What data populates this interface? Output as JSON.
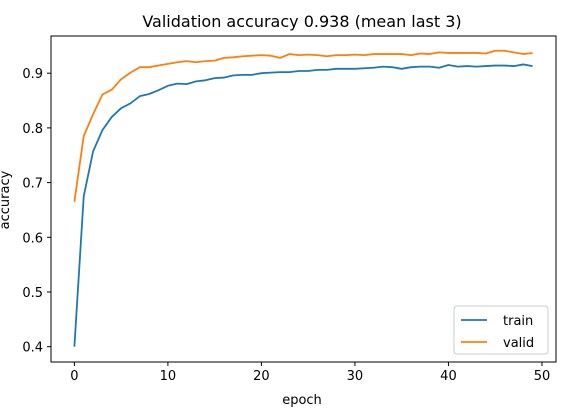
{
  "chart_data": {
    "type": "line",
    "title": "Validation accuracy 0.938 (mean last 3)",
    "xlabel": "epoch",
    "ylabel": "accuracy",
    "xlim": [
      -2.5,
      51.5
    ],
    "ylim": [
      0.372,
      0.968
    ],
    "xticks": [
      0,
      10,
      20,
      30,
      40,
      50
    ],
    "yticks": [
      0.4,
      0.5,
      0.6,
      0.7,
      0.8,
      0.9
    ],
    "xtick_labels": [
      "0",
      "10",
      "20",
      "30",
      "40",
      "50"
    ],
    "ytick_labels": [
      "0.4",
      "0.5",
      "0.6",
      "0.7",
      "0.8",
      "0.9"
    ],
    "grid": false,
    "legend": "lower-right",
    "x": [
      0,
      1,
      2,
      3,
      4,
      5,
      6,
      7,
      8,
      9,
      10,
      11,
      12,
      13,
      14,
      15,
      16,
      17,
      18,
      19,
      20,
      21,
      22,
      23,
      24,
      25,
      26,
      27,
      28,
      29,
      30,
      31,
      32,
      33,
      34,
      35,
      36,
      37,
      38,
      39,
      40,
      41,
      42,
      43,
      44,
      45,
      46,
      47,
      48,
      49
    ],
    "series": [
      {
        "name": "train",
        "color": "#1f77b4",
        "values": [
          0.4,
          0.675,
          0.757,
          0.796,
          0.82,
          0.836,
          0.845,
          0.858,
          0.862,
          0.869,
          0.877,
          0.881,
          0.88,
          0.885,
          0.887,
          0.891,
          0.892,
          0.896,
          0.897,
          0.897,
          0.9,
          0.901,
          0.902,
          0.902,
          0.904,
          0.904,
          0.906,
          0.906,
          0.908,
          0.908,
          0.908,
          0.909,
          0.91,
          0.912,
          0.911,
          0.908,
          0.911,
          0.912,
          0.912,
          0.91,
          0.915,
          0.912,
          0.913,
          0.912,
          0.913,
          0.914,
          0.914,
          0.913,
          0.916,
          0.913
        ]
      },
      {
        "name": "valid",
        "color": "#ff7f0e",
        "values": [
          0.665,
          0.785,
          0.825,
          0.861,
          0.87,
          0.889,
          0.901,
          0.911,
          0.911,
          0.914,
          0.917,
          0.92,
          0.922,
          0.92,
          0.922,
          0.923,
          0.928,
          0.929,
          0.931,
          0.932,
          0.933,
          0.932,
          0.928,
          0.935,
          0.933,
          0.934,
          0.933,
          0.931,
          0.933,
          0.933,
          0.934,
          0.933,
          0.935,
          0.935,
          0.935,
          0.935,
          0.933,
          0.936,
          0.935,
          0.938,
          0.937,
          0.937,
          0.937,
          0.937,
          0.936,
          0.941,
          0.941,
          0.938,
          0.935,
          0.937
        ]
      }
    ]
  }
}
